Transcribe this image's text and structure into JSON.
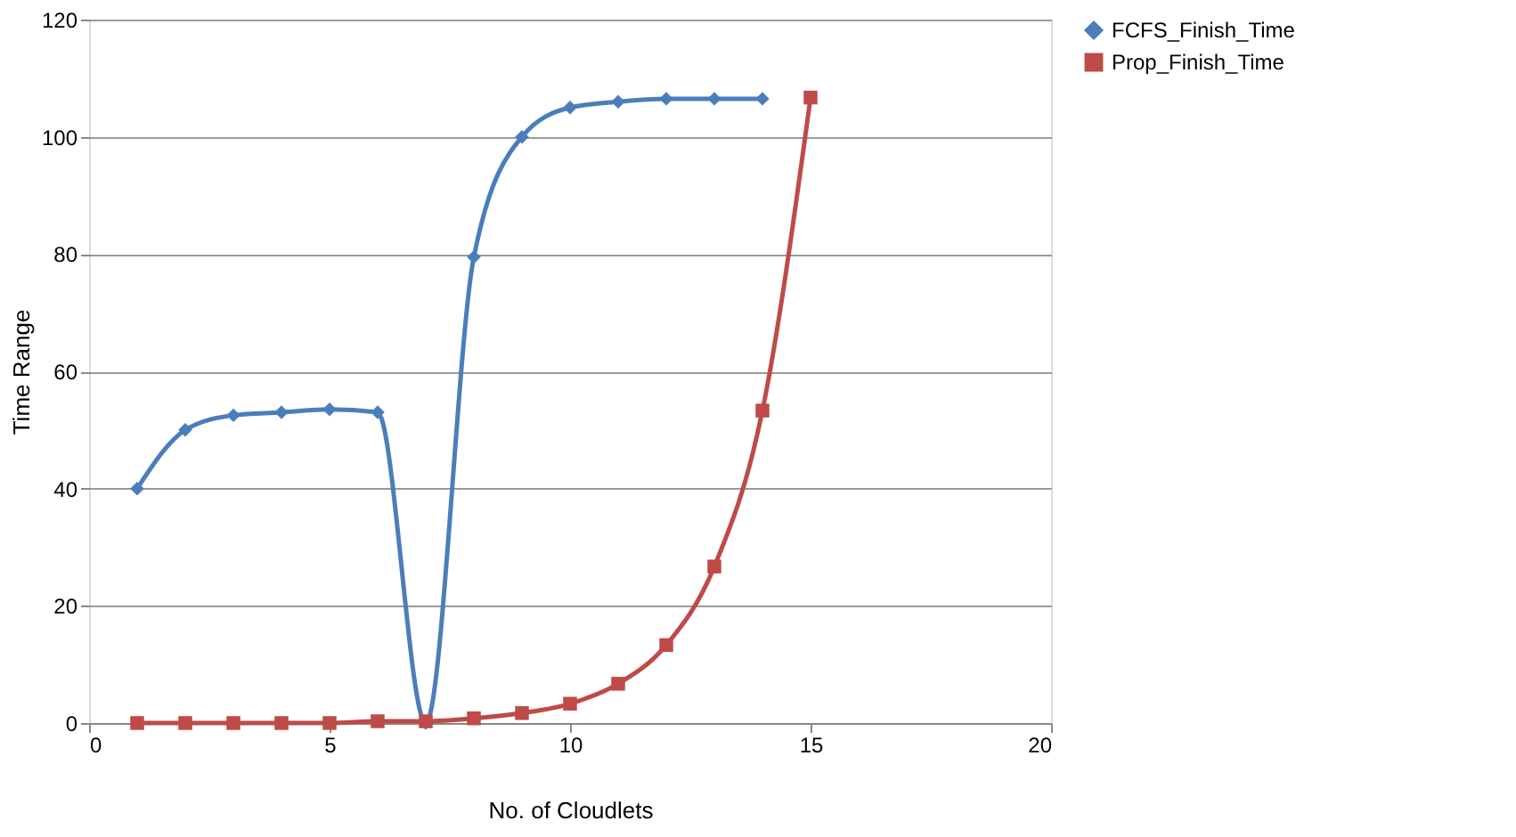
{
  "chart_data": {
    "type": "line",
    "xlabel": "No. of Cloudlets",
    "ylabel": "Time Range",
    "x": [
      1,
      2,
      3,
      4,
      5,
      6,
      7,
      8,
      9,
      10,
      11,
      12,
      13,
      14,
      15
    ],
    "series": [
      {
        "name": "FCFS_Finish_Time",
        "color": "#4a7ebb",
        "marker": "diamond",
        "values": [
          40,
          50,
          52.5,
          53,
          53.5,
          53,
          0,
          79.5,
          100,
          105,
          106,
          106.5,
          106.5,
          106.5,
          null
        ]
      },
      {
        "name": "Prop_Finish_Time",
        "color": "#be4b48",
        "marker": "square",
        "values": [
          0,
          0,
          0,
          0,
          0,
          0.3,
          0.3,
          0.8,
          1.7,
          3.3,
          6.7,
          13.3,
          26.7,
          53.3,
          106.7
        ]
      }
    ],
    "xlim": [
      0,
      20
    ],
    "xticks": [
      0,
      5,
      10,
      15,
      20
    ],
    "ylim": [
      0,
      120
    ],
    "yticks": [
      0,
      20,
      40,
      60,
      80,
      100,
      120
    ],
    "grid": "y",
    "legend": "right",
    "line_style": "solid"
  }
}
